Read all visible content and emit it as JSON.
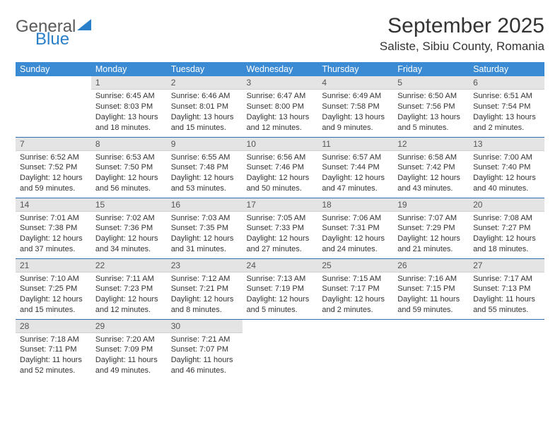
{
  "logo": {
    "general": "General",
    "blue": "Blue"
  },
  "title": "September 2025",
  "location": "Saliste, Sibiu County, Romania",
  "colors": {
    "header_bg": "#3b8bd4",
    "header_fg": "#ffffff",
    "daynum_bg": "#e4e4e4",
    "row_border": "#2a6fb5",
    "logo_blue": "#2a7fc9",
    "logo_gray": "#5a5a5a"
  },
  "weekdays": [
    "Sunday",
    "Monday",
    "Tuesday",
    "Wednesday",
    "Thursday",
    "Friday",
    "Saturday"
  ],
  "weeks": [
    [
      null,
      {
        "n": "1",
        "sr": "Sunrise: 6:45 AM",
        "ss": "Sunset: 8:03 PM",
        "d1": "Daylight: 13 hours",
        "d2": "and 18 minutes."
      },
      {
        "n": "2",
        "sr": "Sunrise: 6:46 AM",
        "ss": "Sunset: 8:01 PM",
        "d1": "Daylight: 13 hours",
        "d2": "and 15 minutes."
      },
      {
        "n": "3",
        "sr": "Sunrise: 6:47 AM",
        "ss": "Sunset: 8:00 PM",
        "d1": "Daylight: 13 hours",
        "d2": "and 12 minutes."
      },
      {
        "n": "4",
        "sr": "Sunrise: 6:49 AM",
        "ss": "Sunset: 7:58 PM",
        "d1": "Daylight: 13 hours",
        "d2": "and 9 minutes."
      },
      {
        "n": "5",
        "sr": "Sunrise: 6:50 AM",
        "ss": "Sunset: 7:56 PM",
        "d1": "Daylight: 13 hours",
        "d2": "and 5 minutes."
      },
      {
        "n": "6",
        "sr": "Sunrise: 6:51 AM",
        "ss": "Sunset: 7:54 PM",
        "d1": "Daylight: 13 hours",
        "d2": "and 2 minutes."
      }
    ],
    [
      {
        "n": "7",
        "sr": "Sunrise: 6:52 AM",
        "ss": "Sunset: 7:52 PM",
        "d1": "Daylight: 12 hours",
        "d2": "and 59 minutes."
      },
      {
        "n": "8",
        "sr": "Sunrise: 6:53 AM",
        "ss": "Sunset: 7:50 PM",
        "d1": "Daylight: 12 hours",
        "d2": "and 56 minutes."
      },
      {
        "n": "9",
        "sr": "Sunrise: 6:55 AM",
        "ss": "Sunset: 7:48 PM",
        "d1": "Daylight: 12 hours",
        "d2": "and 53 minutes."
      },
      {
        "n": "10",
        "sr": "Sunrise: 6:56 AM",
        "ss": "Sunset: 7:46 PM",
        "d1": "Daylight: 12 hours",
        "d2": "and 50 minutes."
      },
      {
        "n": "11",
        "sr": "Sunrise: 6:57 AM",
        "ss": "Sunset: 7:44 PM",
        "d1": "Daylight: 12 hours",
        "d2": "and 47 minutes."
      },
      {
        "n": "12",
        "sr": "Sunrise: 6:58 AM",
        "ss": "Sunset: 7:42 PM",
        "d1": "Daylight: 12 hours",
        "d2": "and 43 minutes."
      },
      {
        "n": "13",
        "sr": "Sunrise: 7:00 AM",
        "ss": "Sunset: 7:40 PM",
        "d1": "Daylight: 12 hours",
        "d2": "and 40 minutes."
      }
    ],
    [
      {
        "n": "14",
        "sr": "Sunrise: 7:01 AM",
        "ss": "Sunset: 7:38 PM",
        "d1": "Daylight: 12 hours",
        "d2": "and 37 minutes."
      },
      {
        "n": "15",
        "sr": "Sunrise: 7:02 AM",
        "ss": "Sunset: 7:36 PM",
        "d1": "Daylight: 12 hours",
        "d2": "and 34 minutes."
      },
      {
        "n": "16",
        "sr": "Sunrise: 7:03 AM",
        "ss": "Sunset: 7:35 PM",
        "d1": "Daylight: 12 hours",
        "d2": "and 31 minutes."
      },
      {
        "n": "17",
        "sr": "Sunrise: 7:05 AM",
        "ss": "Sunset: 7:33 PM",
        "d1": "Daylight: 12 hours",
        "d2": "and 27 minutes."
      },
      {
        "n": "18",
        "sr": "Sunrise: 7:06 AM",
        "ss": "Sunset: 7:31 PM",
        "d1": "Daylight: 12 hours",
        "d2": "and 24 minutes."
      },
      {
        "n": "19",
        "sr": "Sunrise: 7:07 AM",
        "ss": "Sunset: 7:29 PM",
        "d1": "Daylight: 12 hours",
        "d2": "and 21 minutes."
      },
      {
        "n": "20",
        "sr": "Sunrise: 7:08 AM",
        "ss": "Sunset: 7:27 PM",
        "d1": "Daylight: 12 hours",
        "d2": "and 18 minutes."
      }
    ],
    [
      {
        "n": "21",
        "sr": "Sunrise: 7:10 AM",
        "ss": "Sunset: 7:25 PM",
        "d1": "Daylight: 12 hours",
        "d2": "and 15 minutes."
      },
      {
        "n": "22",
        "sr": "Sunrise: 7:11 AM",
        "ss": "Sunset: 7:23 PM",
        "d1": "Daylight: 12 hours",
        "d2": "and 12 minutes."
      },
      {
        "n": "23",
        "sr": "Sunrise: 7:12 AM",
        "ss": "Sunset: 7:21 PM",
        "d1": "Daylight: 12 hours",
        "d2": "and 8 minutes."
      },
      {
        "n": "24",
        "sr": "Sunrise: 7:13 AM",
        "ss": "Sunset: 7:19 PM",
        "d1": "Daylight: 12 hours",
        "d2": "and 5 minutes."
      },
      {
        "n": "25",
        "sr": "Sunrise: 7:15 AM",
        "ss": "Sunset: 7:17 PM",
        "d1": "Daylight: 12 hours",
        "d2": "and 2 minutes."
      },
      {
        "n": "26",
        "sr": "Sunrise: 7:16 AM",
        "ss": "Sunset: 7:15 PM",
        "d1": "Daylight: 11 hours",
        "d2": "and 59 minutes."
      },
      {
        "n": "27",
        "sr": "Sunrise: 7:17 AM",
        "ss": "Sunset: 7:13 PM",
        "d1": "Daylight: 11 hours",
        "d2": "and 55 minutes."
      }
    ],
    [
      {
        "n": "28",
        "sr": "Sunrise: 7:18 AM",
        "ss": "Sunset: 7:11 PM",
        "d1": "Daylight: 11 hours",
        "d2": "and 52 minutes."
      },
      {
        "n": "29",
        "sr": "Sunrise: 7:20 AM",
        "ss": "Sunset: 7:09 PM",
        "d1": "Daylight: 11 hours",
        "d2": "and 49 minutes."
      },
      {
        "n": "30",
        "sr": "Sunrise: 7:21 AM",
        "ss": "Sunset: 7:07 PM",
        "d1": "Daylight: 11 hours",
        "d2": "and 46 minutes."
      },
      null,
      null,
      null,
      null
    ]
  ]
}
